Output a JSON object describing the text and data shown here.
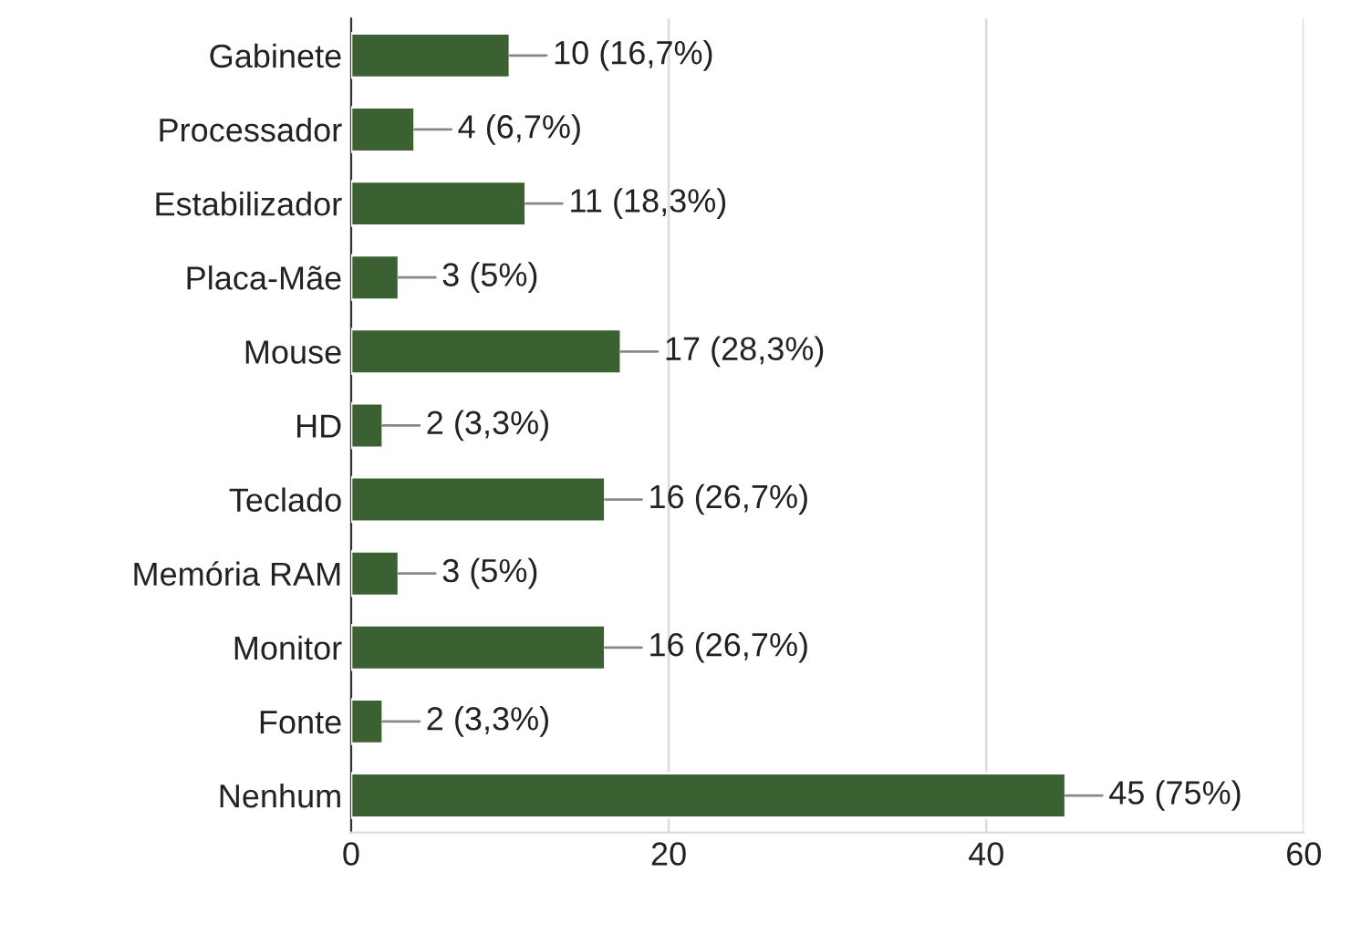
{
  "chart_data": {
    "type": "bar",
    "orientation": "horizontal",
    "categories": [
      "Gabinete",
      "Processador",
      "Estabilizador",
      "Placa-Mãe",
      "Mouse",
      "HD",
      "Teclado",
      "Memória RAM",
      "Monitor",
      "Fonte",
      "Nenhum"
    ],
    "values": [
      10,
      4,
      11,
      3,
      17,
      2,
      16,
      3,
      16,
      2,
      45
    ],
    "value_labels": [
      "10 (16,7%)",
      "4 (6,7%)",
      "11 (18,3%)",
      "3 (5%)",
      "17 (28,3%)",
      "2 (3,3%)",
      "16 (26,7%)",
      "3 (5%)",
      "16 (26,7%)",
      "2 (3,3%)",
      "45 (75%)"
    ],
    "color": "#3b6133",
    "xlim": [
      0,
      60
    ],
    "xticks": [
      0,
      20,
      40,
      60
    ],
    "grid": "x"
  }
}
